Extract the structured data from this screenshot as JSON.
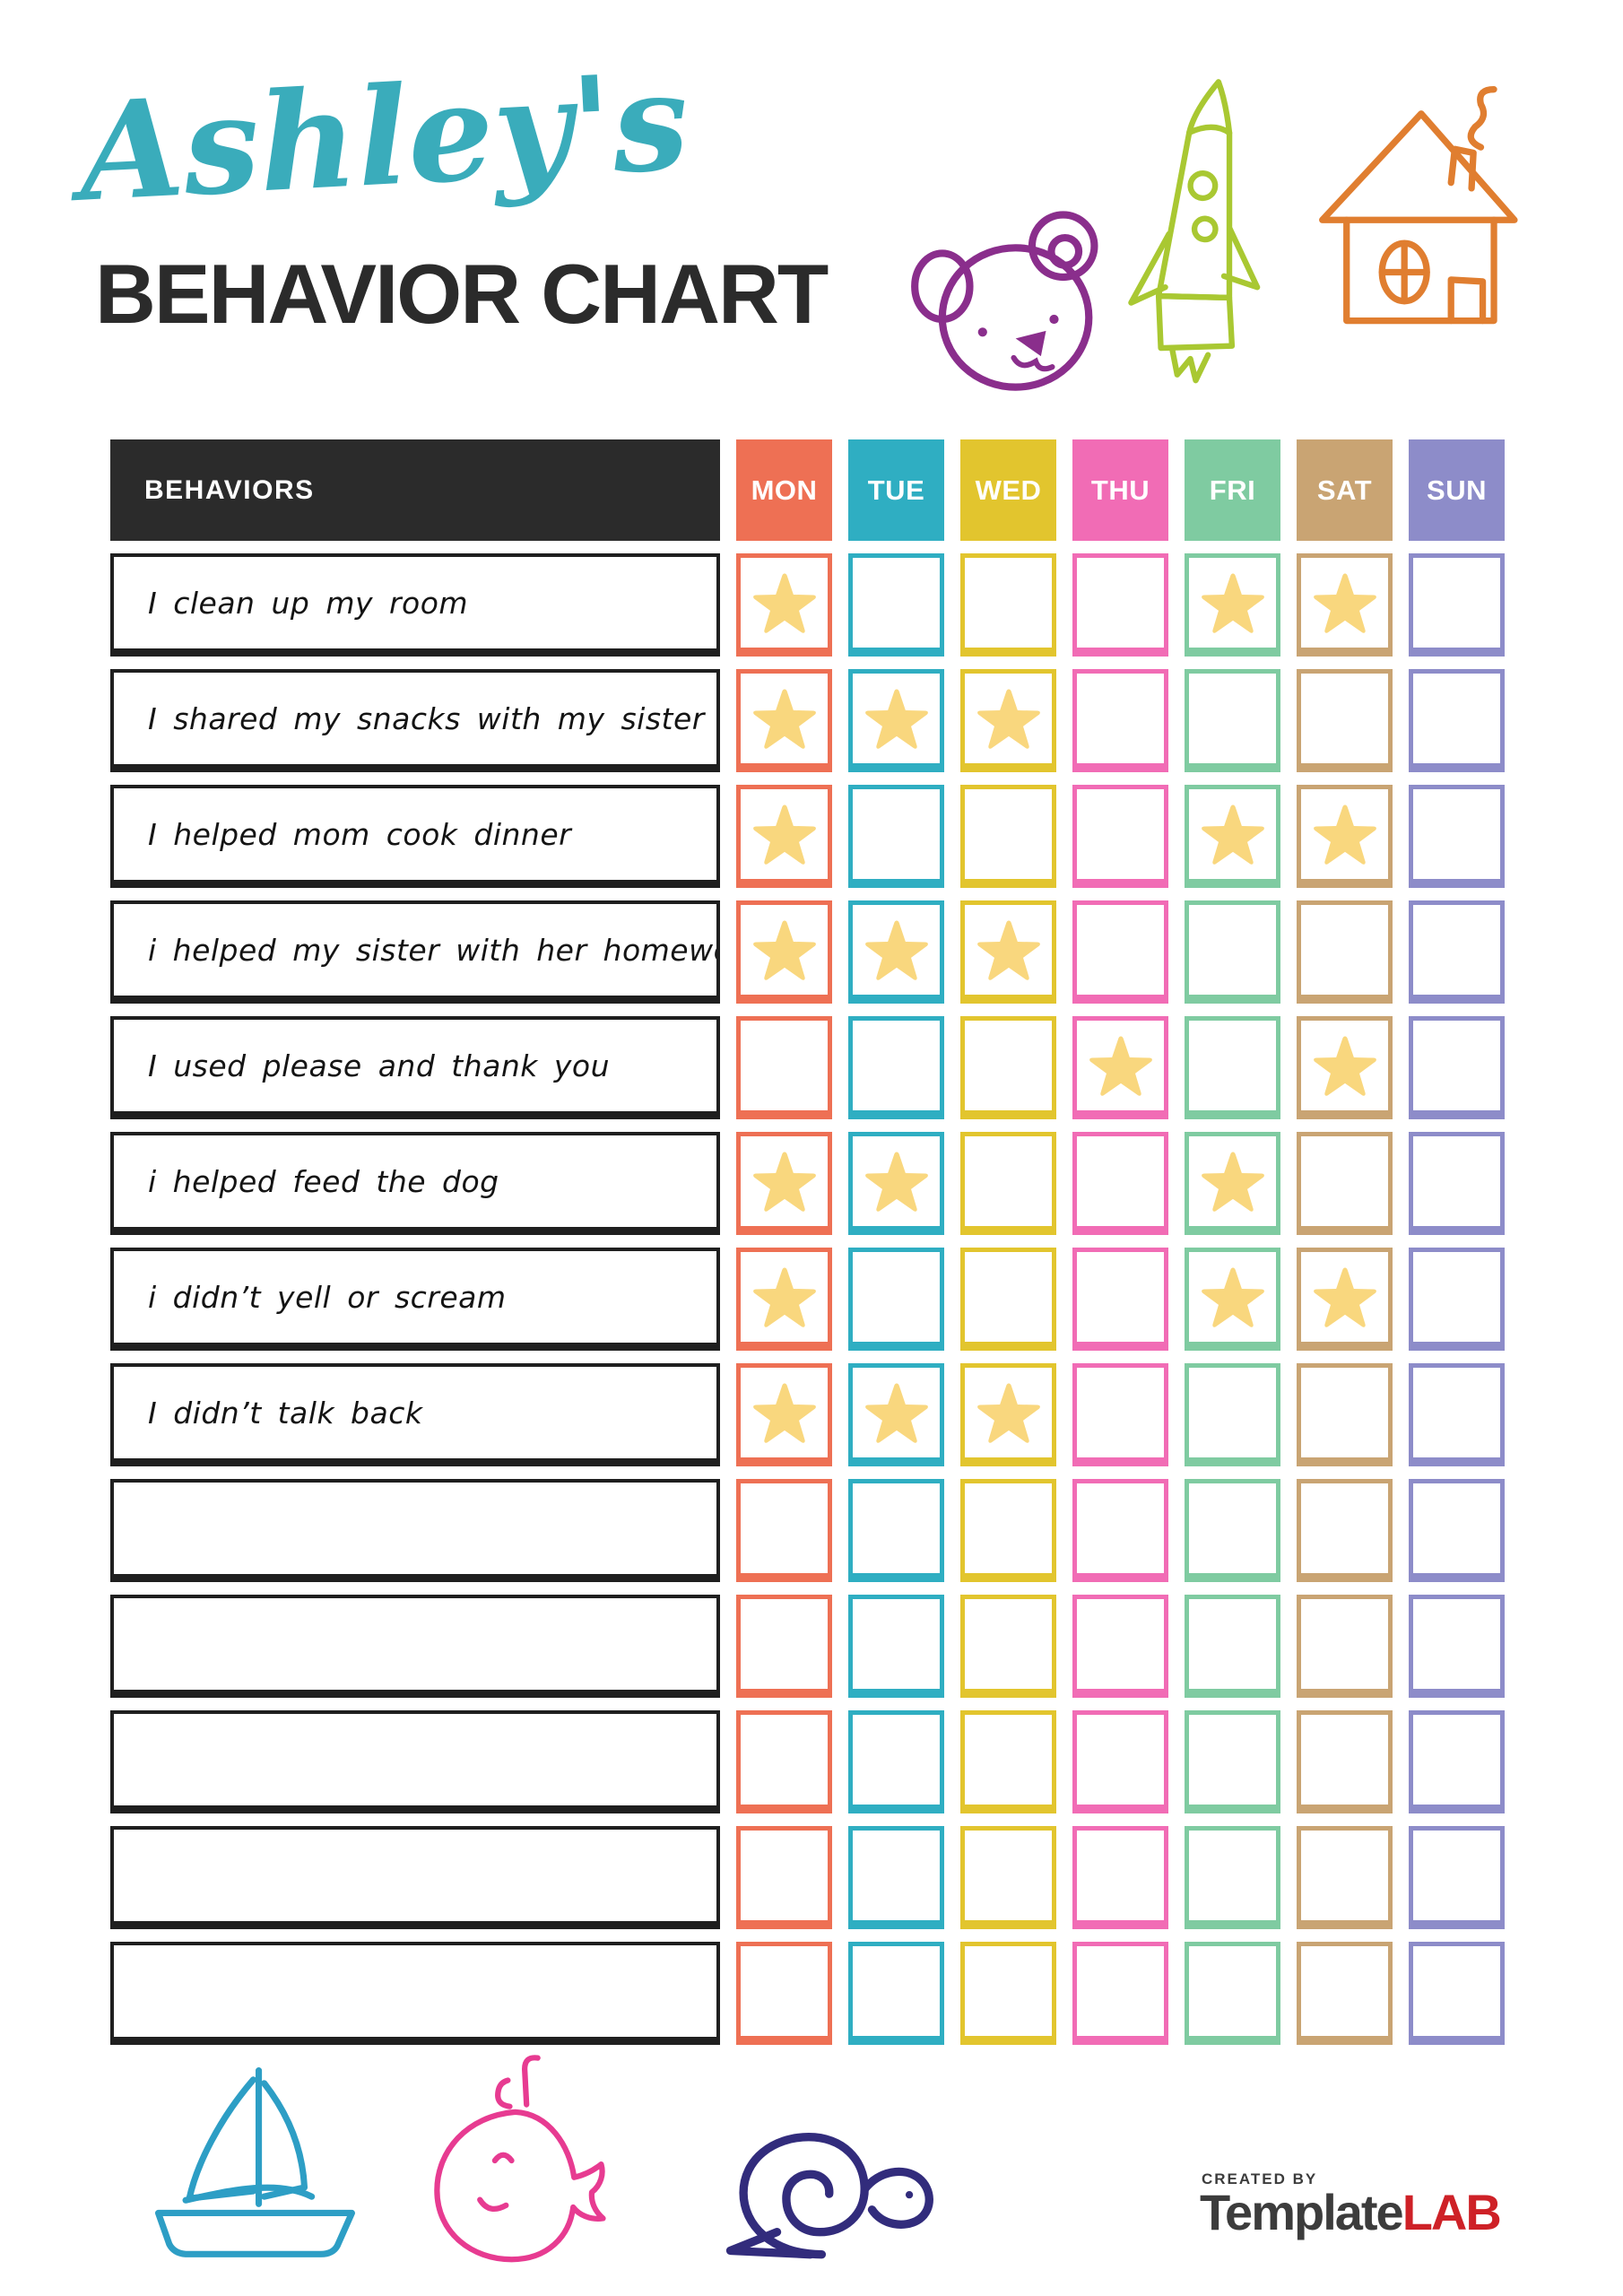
{
  "page": {
    "script_title": "Ashley's",
    "main_title": "BEHAVIOR CHART"
  },
  "header_doodles": [
    "bear-doodle",
    "rocket-doodle",
    "house-doodle"
  ],
  "table": {
    "behaviors_header": "BEHAVIORS",
    "days": [
      {
        "label": "MON",
        "color": "#EE7054"
      },
      {
        "label": "TUE",
        "color": "#2FAEC2"
      },
      {
        "label": "WED",
        "color": "#E2C52E"
      },
      {
        "label": "THU",
        "color": "#F16CB5"
      },
      {
        "label": "FRI",
        "color": "#7FCBA1"
      },
      {
        "label": "SAT",
        "color": "#C9A473"
      },
      {
        "label": "SUN",
        "color": "#8D8CC9"
      }
    ],
    "star_color": "#F9D77E",
    "rows": [
      {
        "label": "I clean up my room",
        "stars": [
          "MON",
          "FRI",
          "SAT"
        ]
      },
      {
        "label": "I shared my snacks with my sister",
        "stars": [
          "MON",
          "TUE",
          "WED"
        ]
      },
      {
        "label": "I helped mom cook dinner",
        "stars": [
          "MON",
          "FRI",
          "SAT"
        ]
      },
      {
        "label": "i helped my sister with her homework",
        "stars": [
          "MON",
          "TUE",
          "WED"
        ]
      },
      {
        "label": "I used please and thank you",
        "stars": [
          "THU",
          "SAT"
        ]
      },
      {
        "label": "i helped feed the dog",
        "stars": [
          "MON",
          "TUE",
          "FRI"
        ]
      },
      {
        "label": "i didn’t yell or scream",
        "stars": [
          "MON",
          "FRI",
          "SAT"
        ]
      },
      {
        "label": "I didn’t talk back",
        "stars": [
          "MON",
          "TUE",
          "WED"
        ]
      },
      {
        "label": "",
        "stars": []
      },
      {
        "label": "",
        "stars": []
      },
      {
        "label": "",
        "stars": []
      },
      {
        "label": "",
        "stars": []
      },
      {
        "label": "",
        "stars": []
      }
    ]
  },
  "footer": {
    "doodles": [
      "sailboat-doodle",
      "whale-doodle",
      "snail-doodle"
    ],
    "created_by": "CREATED BY",
    "brand_main": "Template",
    "brand_suffix": "LAB"
  }
}
